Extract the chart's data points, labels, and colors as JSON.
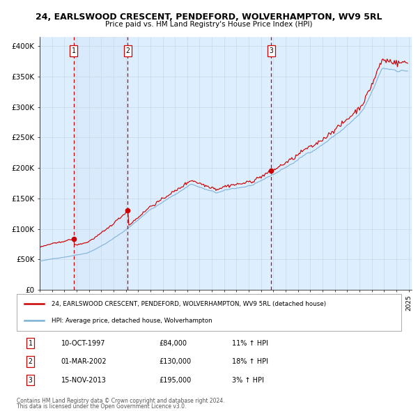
{
  "title1": "24, EARLSWOOD CRESCENT, PENDEFORD, WOLVERHAMPTON, WV9 5RL",
  "title2": "Price paid vs. HM Land Registry's House Price Index (HPI)",
  "sale_date_strs": [
    "10-OCT-1997",
    "01-MAR-2002",
    "15-NOV-2013"
  ],
  "sale_prices": [
    84000,
    130000,
    195000
  ],
  "sale_labels": [
    "1",
    "2",
    "3"
  ],
  "sale_pct_strs": [
    "11% ↑ HPI",
    "18% ↑ HPI",
    "3% ↑ HPI"
  ],
  "sale_price_strs": [
    "£84,000",
    "£130,000",
    "£195,000"
  ],
  "red_color": "#cc0000",
  "blue_color": "#7bafd4",
  "bg_color": "#ddeeff",
  "grid_color": "#c8d8e8",
  "legend1": "24, EARLSWOOD CRESCENT, PENDEFORD, WOLVERHAMPTON, WV9 5RL (detached house)",
  "legend2": "HPI: Average price, detached house, Wolverhampton",
  "footer1": "Contains HM Land Registry data © Crown copyright and database right 2024.",
  "footer2": "This data is licensed under the Open Government Licence v3.0.",
  "yticks": [
    0,
    50000,
    100000,
    150000,
    200000,
    250000,
    300000,
    350000,
    400000
  ],
  "ylabel_fmt": [
    "£0",
    "£50K",
    "£100K",
    "£150K",
    "£200K",
    "£250K",
    "£300K",
    "£350K",
    "£400K"
  ]
}
